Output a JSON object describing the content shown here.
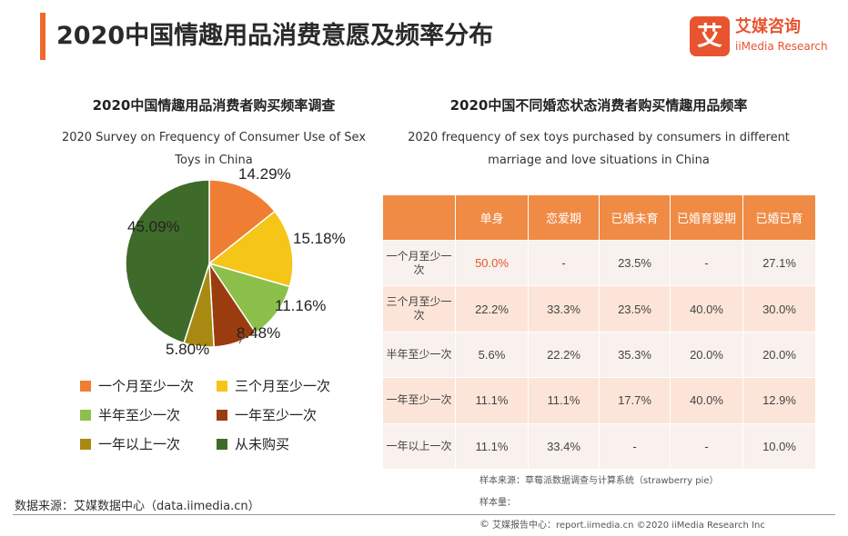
{
  "header": {
    "title": "2020中国情趣用品消费意愿及频率分布",
    "logo_char": "艾",
    "logo_cn": "艾媒咨询",
    "logo_en": "iiMedia Research"
  },
  "colors": {
    "accent": "#ee6a2c",
    "table_header": "#f08b45",
    "row_light": "#f8f1ed",
    "row_dark": "#fce5d8",
    "highlight": "#e8542f"
  },
  "left_panel": {
    "title": "2020中国情趣用品消费者购买频率调查",
    "subtitle_line1": "2020 Survey on Frequency of Consumer Use of Sex",
    "subtitle_line2": "Toys in China"
  },
  "right_panel": {
    "title": "2020中国不同婚恋状态消费者购买情趣用品频率",
    "subtitle_line1": "2020 frequency of sex toys purchased by consumers in different",
    "subtitle_line2": "marriage and love situations in China"
  },
  "chart_data": [
    {
      "type": "pie",
      "title": "2020中国情趣用品消费者购买频率调查",
      "categories": [
        "一个月至少一次",
        "三个月至少一次",
        "半年至少一次",
        "一年至少一次",
        "一年以上一次",
        "从未购买"
      ],
      "values": [
        14.29,
        15.18,
        11.16,
        8.48,
        5.8,
        45.09
      ],
      "labels": [
        "14.29%",
        "15.18%",
        "11.16%",
        "8.48%",
        "5.80%",
        "45.09%"
      ],
      "colors": [
        "#ef7d33",
        "#f5c518",
        "#8cc04a",
        "#9a3c10",
        "#a88a12",
        "#3f6b2a"
      ],
      "legend": "bottom"
    },
    {
      "type": "table",
      "title": "2020中国不同婚恋状态消费者购买情趣用品频率",
      "columns": [
        "",
        "单身",
        "恋爱期",
        "已婚未育",
        "已婚育婴期",
        "已婚已育"
      ],
      "rows": [
        {
          "label": "一个月至少一次",
          "values": [
            "50.0%",
            "-",
            "23.5%",
            "-",
            "27.1%"
          ]
        },
        {
          "label": "三个月至少一次",
          "values": [
            "22.2%",
            "33.3%",
            "23.5%",
            "40.0%",
            "30.0%"
          ]
        },
        {
          "label": "半年至少一次",
          "values": [
            "5.6%",
            "22.2%",
            "35.3%",
            "20.0%",
            "20.0%"
          ]
        },
        {
          "label": "一年至少一次",
          "values": [
            "11.1%",
            "11.1%",
            "17.7%",
            "40.0%",
            "12.9%"
          ]
        },
        {
          "label": "一年以上一次",
          "values": [
            "11.1%",
            "33.4%",
            "-",
            "-",
            "10.0%"
          ]
        }
      ]
    }
  ],
  "notes": {
    "sample_source": "样本来源：草莓派数据调查与计算系统（strawberry pie）",
    "sample_size": "样本量：",
    "data_source": "数据来源：艾媒数据中心（data.iimedia.cn）",
    "footer": "艾媒报告中心：report.iimedia.cn  ©2020  iiMedia Research  Inc",
    "footer_icon": "copyright-icon"
  }
}
